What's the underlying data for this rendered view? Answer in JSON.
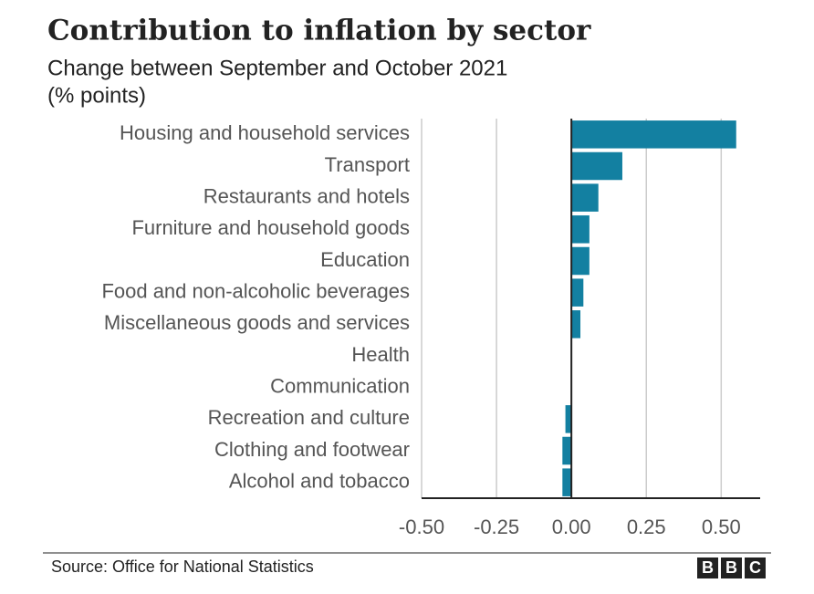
{
  "chart_data": {
    "type": "bar",
    "orientation": "horizontal",
    "title": "Contribution to inflation by sector",
    "subtitle": [
      "Change between September and October 2021",
      "(% points)"
    ],
    "categories": [
      "Housing and household services",
      "Transport",
      "Restaurants and hotels",
      "Furniture and household goods",
      "Education",
      "Food and non-alcoholic beverages",
      "Miscellaneous goods and services",
      "Health",
      "Communication",
      "Recreation and culture",
      "Clothing and footwear",
      "Alcohol and tobacco"
    ],
    "values": [
      0.55,
      0.17,
      0.09,
      0.06,
      0.06,
      0.04,
      0.03,
      0,
      0,
      -0.02,
      -0.03,
      -0.03
    ],
    "color": "#1380a1",
    "xlim": [
      -0.5,
      0.63
    ],
    "xticks": [
      {
        "value": -0.5,
        "label": "-0.50"
      },
      -0.25,
      {
        "value": 0,
        "label": "0.00"
      },
      0.25,
      {
        "value": 0.5,
        "label": "0.50"
      }
    ],
    "grid": true,
    "source": "Source: Office for National Statistics",
    "logo": [
      "B",
      "B",
      "C"
    ]
  }
}
